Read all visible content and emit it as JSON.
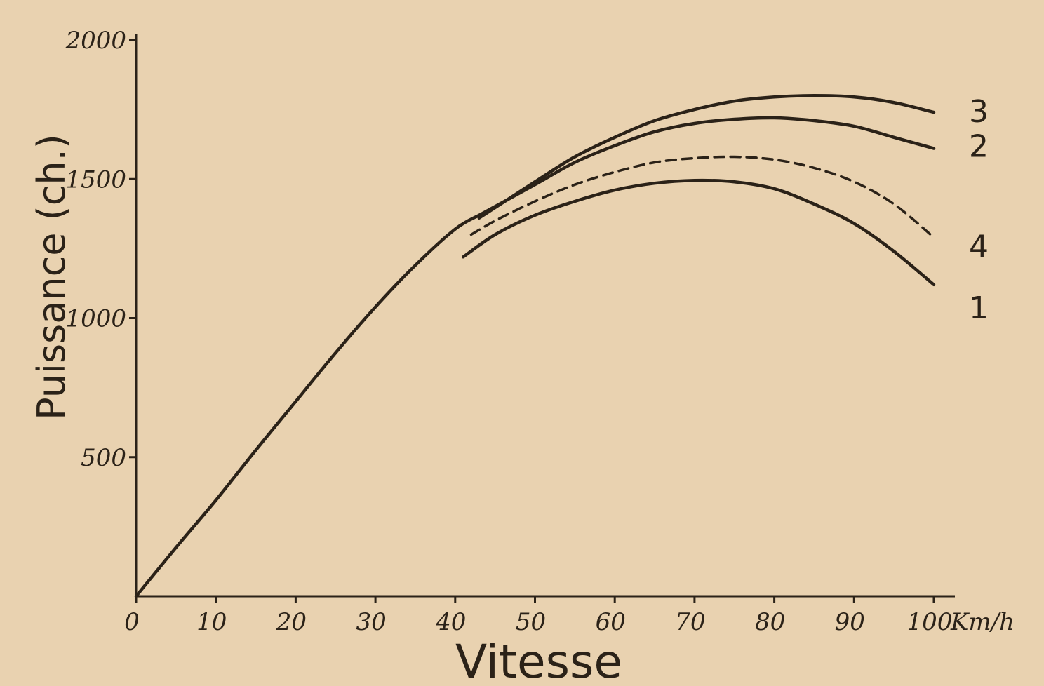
{
  "chart_data": {
    "type": "line",
    "title": "",
    "xlabel": "Vitesse",
    "xunit": "Km/h",
    "ylabel": "Puissance (ch.)",
    "xlim": [
      0,
      100
    ],
    "ylim": [
      0,
      2000
    ],
    "xticks": [
      0,
      10,
      20,
      30,
      40,
      50,
      60,
      70,
      80,
      90,
      100
    ],
    "yticks": [
      500,
      1000,
      1500,
      2000
    ],
    "grid": false,
    "legend": "none",
    "common_curve": {
      "x": [
        0,
        5,
        10,
        15,
        20,
        25,
        30,
        35,
        40,
        43
      ],
      "y": [
        0,
        175,
        345,
        525,
        700,
        875,
        1040,
        1190,
        1320,
        1370
      ]
    },
    "series": [
      {
        "name": "1",
        "style": "solid",
        "x": [
          41,
          45,
          50,
          55,
          60,
          65,
          70,
          75,
          80,
          85,
          90,
          95,
          100
        ],
        "y": [
          1220,
          1300,
          1370,
          1420,
          1460,
          1485,
          1495,
          1490,
          1465,
          1410,
          1340,
          1240,
          1120
        ]
      },
      {
        "name": "2",
        "style": "solid",
        "x": [
          43,
          50,
          55,
          60,
          65,
          70,
          75,
          80,
          85,
          90,
          95,
          100
        ],
        "y": [
          1370,
          1480,
          1560,
          1620,
          1670,
          1700,
          1715,
          1720,
          1710,
          1690,
          1650,
          1610
        ]
      },
      {
        "name": "3",
        "style": "solid",
        "x": [
          43,
          50,
          55,
          60,
          65,
          70,
          75,
          80,
          85,
          90,
          95,
          100
        ],
        "y": [
          1360,
          1490,
          1580,
          1650,
          1710,
          1750,
          1780,
          1795,
          1800,
          1795,
          1775,
          1740
        ]
      },
      {
        "name": "4",
        "style": "dashed",
        "x": [
          42,
          45,
          50,
          55,
          60,
          65,
          70,
          75,
          80,
          85,
          90,
          95,
          100
        ],
        "y": [
          1300,
          1350,
          1420,
          1480,
          1525,
          1560,
          1575,
          1580,
          1570,
          1540,
          1490,
          1410,
          1290
        ]
      }
    ]
  }
}
